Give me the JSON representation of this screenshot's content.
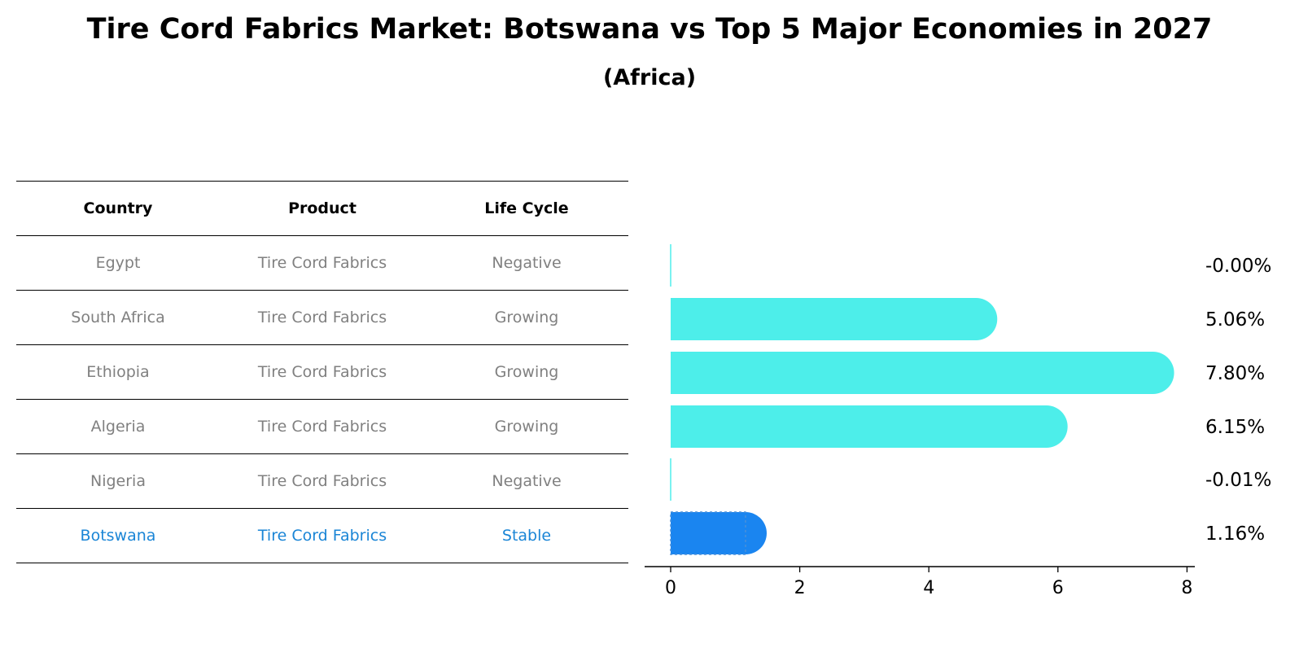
{
  "title": "Tire Cord Fabrics Market: Botswana vs Top 5 Major Economies in 2027",
  "subtitle": "(Africa)",
  "table": {
    "headers": [
      "Country",
      "Product",
      "Life Cycle"
    ],
    "rows": [
      {
        "country": "Egypt",
        "product": "Tire Cord Fabrics",
        "life_cycle": "Negative"
      },
      {
        "country": "South Africa",
        "product": "Tire Cord Fabrics",
        "life_cycle": "Growing"
      },
      {
        "country": "Ethiopia",
        "product": "Tire Cord Fabrics",
        "life_cycle": "Growing"
      },
      {
        "country": "Algeria",
        "product": "Tire Cord Fabrics",
        "life_cycle": "Growing"
      },
      {
        "country": "Nigeria",
        "product": "Tire Cord Fabrics",
        "life_cycle": "Negative"
      },
      {
        "country": "Botswana",
        "product": "Tire Cord Fabrics",
        "life_cycle": "Stable"
      }
    ]
  },
  "chart_data": {
    "type": "bar",
    "orientation": "horizontal",
    "categories": [
      "Egypt",
      "South Africa",
      "Ethiopia",
      "Algeria",
      "Nigeria",
      "Botswana"
    ],
    "values": [
      -0.0,
      5.06,
      7.8,
      6.15,
      -0.01,
      1.16
    ],
    "data_labels": [
      "-0.00%",
      "5.06%",
      "7.80%",
      "6.15%",
      "-0.01%",
      "1.16%"
    ],
    "xlim": [
      -0.4,
      8.2
    ],
    "xticks": [
      0,
      2,
      4,
      6,
      8
    ],
    "colors": {
      "default": "#4deeea",
      "highlight": "#1a85f0"
    },
    "highlight": "Botswana"
  }
}
